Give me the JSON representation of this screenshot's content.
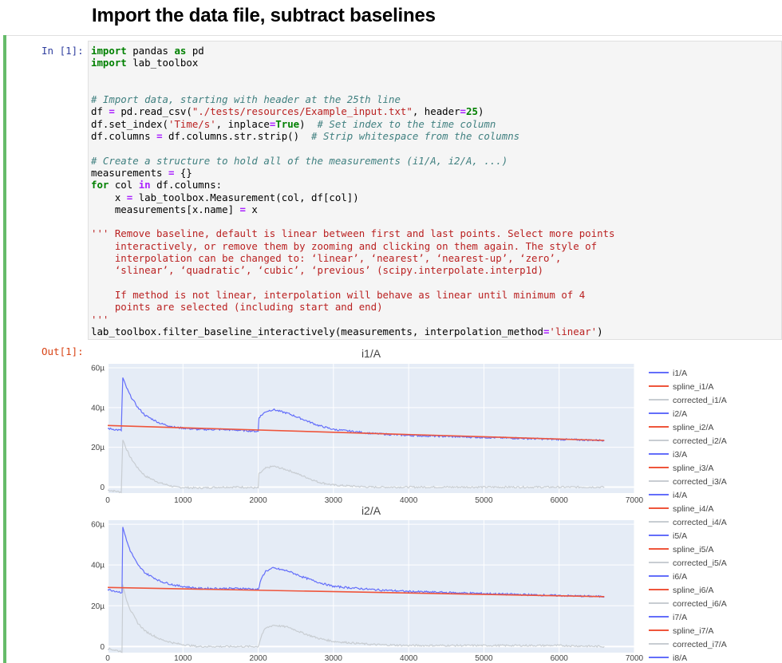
{
  "heading": "Import the data file, subtract baselines",
  "cell": {
    "in_prompt": "In [1]:",
    "out_prompt": "Out[1]:",
    "code_lines": [
      [
        {
          "t": "import",
          "c": "kw"
        },
        {
          "t": " pandas "
        },
        {
          "t": "as",
          "c": "kw"
        },
        {
          "t": " pd"
        }
      ],
      [
        {
          "t": "import",
          "c": "kw"
        },
        {
          "t": " lab_toolbox"
        }
      ],
      [],
      [],
      [
        {
          "t": "# Import data, starting with header at the 25th line",
          "c": "cm"
        }
      ],
      [
        {
          "t": "df "
        },
        {
          "t": "=",
          "c": "op"
        },
        {
          "t": " pd.read_csv("
        },
        {
          "t": "\"./tests/resources/Example_input.txt\"",
          "c": "st"
        },
        {
          "t": ", header"
        },
        {
          "t": "=",
          "c": "op"
        },
        {
          "t": "25",
          "c": "kc"
        },
        {
          "t": ")"
        }
      ],
      [
        {
          "t": "df.set_index("
        },
        {
          "t": "'Time/s'",
          "c": "st"
        },
        {
          "t": ", inplace"
        },
        {
          "t": "=",
          "c": "op"
        },
        {
          "t": "True",
          "c": "kc"
        },
        {
          "t": ")  "
        },
        {
          "t": "# Set index to the time column",
          "c": "cm"
        }
      ],
      [
        {
          "t": "df.columns "
        },
        {
          "t": "=",
          "c": "op"
        },
        {
          "t": " df.columns.str.strip()  "
        },
        {
          "t": "# Strip whitespace from the columns",
          "c": "cm"
        }
      ],
      [],
      [
        {
          "t": "# Create a structure to hold all of the measurements (i1/A, i2/A, ...)",
          "c": "cm"
        }
      ],
      [
        {
          "t": "measurements "
        },
        {
          "t": "=",
          "c": "op"
        },
        {
          "t": " {}"
        }
      ],
      [
        {
          "t": "for",
          "c": "kw"
        },
        {
          "t": " col "
        },
        {
          "t": "in",
          "c": "op"
        },
        {
          "t": " df.columns:"
        }
      ],
      [
        {
          "t": "    x "
        },
        {
          "t": "=",
          "c": "op"
        },
        {
          "t": " lab_toolbox.Measurement(col, df[col])"
        }
      ],
      [
        {
          "t": "    measurements[x.name] "
        },
        {
          "t": "=",
          "c": "op"
        },
        {
          "t": " x"
        }
      ],
      [],
      [
        {
          "t": "''' Remove baseline, default is linear between first and last points. Select more points",
          "c": "ds"
        }
      ],
      [
        {
          "t": "    interactively, or remove them by zooming and clicking on them again. The style of",
          "c": "ds"
        }
      ],
      [
        {
          "t": "    interpolation can be changed to: ‘linear’, ‘nearest’, ‘nearest-up’, ‘zero’,",
          "c": "ds"
        }
      ],
      [
        {
          "t": "    ‘slinear’, ‘quadratic’, ‘cubic’, ‘previous’ (scipy.interpolate.interp1d)",
          "c": "ds"
        }
      ],
      [],
      [
        {
          "t": "    If method is not linear, interpolation will behave as linear until minimum of 4",
          "c": "ds"
        }
      ],
      [
        {
          "t": "    points are selected (including start and end)",
          "c": "ds"
        }
      ],
      [
        {
          "t": "'''",
          "c": "ds"
        }
      ],
      [
        {
          "t": "lab_toolbox.filter_baseline_interactively(measurements, interpolation_method"
        },
        {
          "t": "=",
          "c": "op"
        },
        {
          "t": "'linear'",
          "c": "st"
        },
        {
          "t": ")"
        }
      ]
    ]
  },
  "colors": {
    "measurement": "#636efa",
    "spline": "#ef553b",
    "corrected": "#c8cdd2",
    "plot_bg": "#e5ecf6",
    "grid": "#ffffff"
  },
  "legend": [
    "i1/A",
    "spline_i1/A",
    "corrected_i1/A",
    "i2/A",
    "spline_i2/A",
    "corrected_i2/A",
    "i3/A",
    "spline_i3/A",
    "corrected_i3/A",
    "i4/A",
    "spline_i4/A",
    "corrected_i4/A",
    "i5/A",
    "spline_i5/A",
    "corrected_i5/A",
    "i6/A",
    "spline_i6/A",
    "corrected_i6/A",
    "i7/A",
    "spline_i7/A",
    "corrected_i7/A",
    "i8/A"
  ],
  "chart_data": [
    {
      "type": "line",
      "title": "i1/A",
      "xlim": [
        0,
        7000
      ],
      "ylim": [
        -3e-06,
        6.2e-05
      ],
      "x_ticks": [
        0,
        1000,
        2000,
        3000,
        4000,
        5000,
        6000,
        7000
      ],
      "x_tick_labels": [
        "0",
        "1000",
        "2000",
        "3000",
        "4000",
        "5000",
        "6000",
        "7000"
      ],
      "y_ticks": [
        0,
        2e-05,
        4e-05,
        6e-05
      ],
      "y_tick_labels": [
        "0",
        "20µ",
        "40µ",
        "60µ"
      ],
      "grid": true,
      "legend_position": "right",
      "series": [
        {
          "name": "i1/A",
          "role": "measurement",
          "x": [
            0,
            180,
            200,
            250,
            300,
            400,
            500,
            700,
            900,
            1200,
            1500,
            1800,
            2000,
            2010,
            2100,
            2200,
            2400,
            2600,
            2800,
            3000,
            3500,
            4000,
            4500,
            5000,
            5500,
            6000,
            6600
          ],
          "y": [
            2.95e-05,
            2.85e-05,
            5.5e-05,
            5e-05,
            4.6e-05,
            4e-05,
            3.6e-05,
            3.2e-05,
            3e-05,
            2.9e-05,
            2.9e-05,
            2.85e-05,
            2.8e-05,
            3.5e-05,
            3.8e-05,
            3.9e-05,
            3.7e-05,
            3.4e-05,
            3.1e-05,
            2.9e-05,
            2.7e-05,
            2.6e-05,
            2.55e-05,
            2.5e-05,
            2.45e-05,
            2.4e-05,
            2.35e-05
          ]
        },
        {
          "name": "spline_i1/A",
          "role": "spline",
          "x": [
            0,
            6600
          ],
          "y": [
            3.1e-05,
            2.35e-05
          ]
        },
        {
          "name": "corrected_i1/A",
          "role": "corrected",
          "x": [
            0,
            180,
            200,
            250,
            300,
            400,
            500,
            700,
            900,
            1200,
            1500,
            1800,
            2000,
            2010,
            2100,
            2200,
            2400,
            2600,
            2800,
            3000,
            3500,
            4000,
            4500,
            5000,
            5500,
            6000,
            6600
          ],
          "y": [
            -1.5e-06,
            -2.5e-06,
            2.4e-05,
            1.9e-05,
            1.5e-05,
            9.5e-06,
            5.5e-06,
            2e-06,
            0,
            -5e-07,
            0,
            0,
            -5e-07,
            6.5e-06,
            9.5e-06,
            1.05e-05,
            8.5e-06,
            5.5e-06,
            2.5e-06,
            1e-06,
            0,
            0,
            0,
            0,
            0,
            0,
            0
          ]
        }
      ]
    },
    {
      "type": "line",
      "title": "i2/A",
      "xlim": [
        0,
        7000
      ],
      "ylim": [
        -3e-06,
        6.2e-05
      ],
      "x_ticks": [
        0,
        1000,
        2000,
        3000,
        4000,
        5000,
        6000,
        7000
      ],
      "x_tick_labels": [
        "0",
        "1000",
        "2000",
        "3000",
        "4000",
        "5000",
        "6000",
        "7000"
      ],
      "y_ticks": [
        0,
        2e-05,
        4e-05,
        6e-05
      ],
      "y_tick_labels": [
        "0",
        "20µ",
        "40µ",
        "60µ"
      ],
      "grid": true,
      "legend_position": "right",
      "series": [
        {
          "name": "i2/A",
          "role": "measurement",
          "x": [
            0,
            190,
            200,
            250,
            300,
            400,
            500,
            700,
            900,
            1200,
            1500,
            1800,
            2000,
            2050,
            2100,
            2200,
            2400,
            2600,
            2800,
            3000,
            3500,
            4000,
            4500,
            5000,
            5500,
            6000,
            6600
          ],
          "y": [
            2.8e-05,
            2.65e-05,
            5.9e-05,
            5.2e-05,
            4.7e-05,
            4e-05,
            3.6e-05,
            3.2e-05,
            3e-05,
            2.85e-05,
            2.85e-05,
            2.85e-05,
            2.8e-05,
            3.4e-05,
            3.7e-05,
            3.85e-05,
            3.7e-05,
            3.4e-05,
            3.15e-05,
            2.95e-05,
            2.8e-05,
            2.7e-05,
            2.65e-05,
            2.6e-05,
            2.55e-05,
            2.5e-05,
            2.45e-05
          ]
        },
        {
          "name": "spline_i2/A",
          "role": "spline",
          "x": [
            0,
            6600
          ],
          "y": [
            2.9e-05,
            2.45e-05
          ]
        },
        {
          "name": "corrected_i2/A",
          "role": "corrected",
          "x": [
            0,
            190,
            200,
            250,
            300,
            400,
            500,
            700,
            900,
            1200,
            1500,
            1800,
            2000,
            2050,
            2100,
            2200,
            2400,
            2600,
            2800,
            3000,
            3500,
            4000,
            4500,
            5000,
            5500,
            6000,
            6600
          ],
          "y": [
            -1e-06,
            -2.5e-06,
            3e-05,
            2.3e-05,
            1.8e-05,
            1.15e-05,
            7.5e-06,
            3.5e-06,
            1.5e-06,
            0,
            0,
            0,
            0,
            6e-06,
            9e-06,
            1.05e-05,
            9.5e-06,
            6.5e-06,
            4e-06,
            2.5e-06,
            1e-06,
            5e-07,
            5e-07,
            5e-07,
            5e-07,
            5e-07,
            0
          ]
        }
      ]
    }
  ]
}
